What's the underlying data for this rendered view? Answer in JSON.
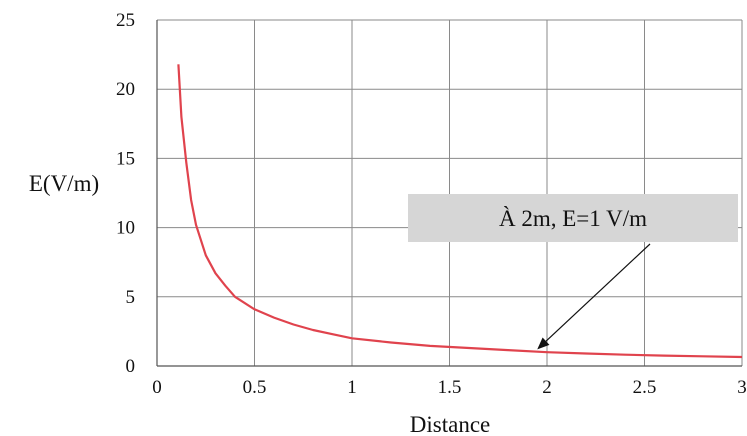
{
  "chart_data": {
    "type": "line",
    "title": "",
    "xlabel": "Distance",
    "ylabel": "E(V/m)",
    "xlim": [
      0,
      3
    ],
    "ylim": [
      0,
      25
    ],
    "x_ticks": [
      "0",
      "0.5",
      "1",
      "1.5",
      "2",
      "2.5",
      "3"
    ],
    "y_ticks": [
      "0",
      "5",
      "10",
      "15",
      "20",
      "25"
    ],
    "grid": true,
    "series": [
      {
        "color": "#e0434d",
        "x": [
          0.11,
          0.125,
          0.15,
          0.175,
          0.2,
          0.25,
          0.3,
          0.35,
          0.4,
          0.5,
          0.6,
          0.7,
          0.8,
          0.9,
          1.0,
          1.2,
          1.4,
          1.6,
          1.8,
          2.0,
          2.2,
          2.4,
          2.6,
          2.8,
          3.0
        ],
        "y": [
          21.8,
          18.0,
          14.7,
          12.0,
          10.2,
          8.0,
          6.7,
          5.8,
          5.0,
          4.1,
          3.5,
          3.0,
          2.6,
          2.3,
          2.0,
          1.7,
          1.45,
          1.3,
          1.15,
          1.0,
          0.9,
          0.82,
          0.75,
          0.7,
          0.65
        ]
      }
    ],
    "annotation": {
      "text": "À 2m, E=1 V/m",
      "box_color": "#d6d6d6",
      "arrow_target": [
        1.95,
        1.2
      ]
    }
  }
}
